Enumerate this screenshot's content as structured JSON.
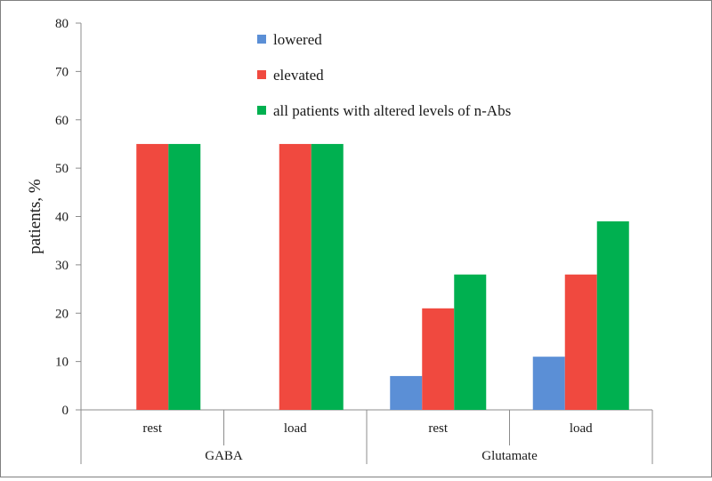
{
  "chart_data": {
    "type": "bar",
    "title": "",
    "ylabel": "patients, %",
    "ylim": [
      0,
      80
    ],
    "yticks": [
      0,
      10,
      20,
      30,
      40,
      50,
      60,
      70,
      80
    ],
    "grid": false,
    "legend_position": "top-center",
    "groups": [
      {
        "label": "GABA",
        "categories": [
          "rest",
          "load"
        ]
      },
      {
        "label": "Glutamate",
        "categories": [
          "rest",
          "load"
        ]
      }
    ],
    "categories": [
      "rest",
      "load",
      "rest",
      "load"
    ],
    "series": [
      {
        "name": "lowered",
        "color": "#5b8fd6",
        "values": [
          0,
          0,
          7,
          11
        ]
      },
      {
        "name": "elevated",
        "color": "#f0493f",
        "values": [
          55,
          55,
          21,
          28
        ]
      },
      {
        "name": "all patients with altered levels of n-Abs",
        "color": "#00b050",
        "values": [
          55,
          55,
          28,
          39
        ]
      }
    ]
  }
}
